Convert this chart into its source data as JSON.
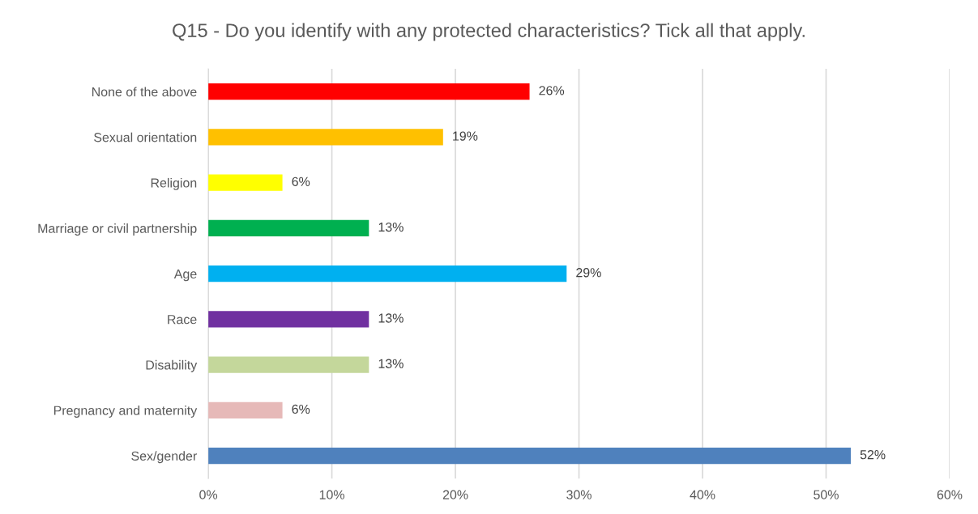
{
  "chart_data": {
    "type": "bar",
    "orientation": "horizontal",
    "title": "Q15 - Do you identify with any protected characteristics? Tick all that apply.",
    "categories": [
      "None of the above",
      "Sexual orientation",
      "Religion",
      "Marriage or civil partnership",
      "Age",
      "Race",
      "Disability",
      "Pregnancy and maternity",
      "Sex/gender"
    ],
    "values": [
      26,
      19,
      6,
      13,
      29,
      13,
      13,
      6,
      52
    ],
    "colors": [
      "#ff0000",
      "#ffc000",
      "#ffff00",
      "#00b050",
      "#00b0f0",
      "#7030a0",
      "#c4d79b",
      "#e6b9b8",
      "#4f81bd"
    ],
    "value_labels": [
      "26%",
      "19%",
      "6%",
      "13%",
      "29%",
      "13%",
      "13%",
      "6%",
      "52%"
    ],
    "xlim": [
      0,
      60
    ],
    "xticks": [
      {
        "value": 0,
        "label": "0%"
      },
      {
        "value": 10,
        "label": "10%"
      },
      {
        "value": 20,
        "label": "20%"
      },
      {
        "value": 30,
        "label": "30%"
      },
      {
        "value": 40,
        "label": "40%"
      },
      {
        "value": 50,
        "label": "50%"
      },
      {
        "value": 60,
        "label": "60%"
      }
    ],
    "grid": "x",
    "legend": false
  }
}
